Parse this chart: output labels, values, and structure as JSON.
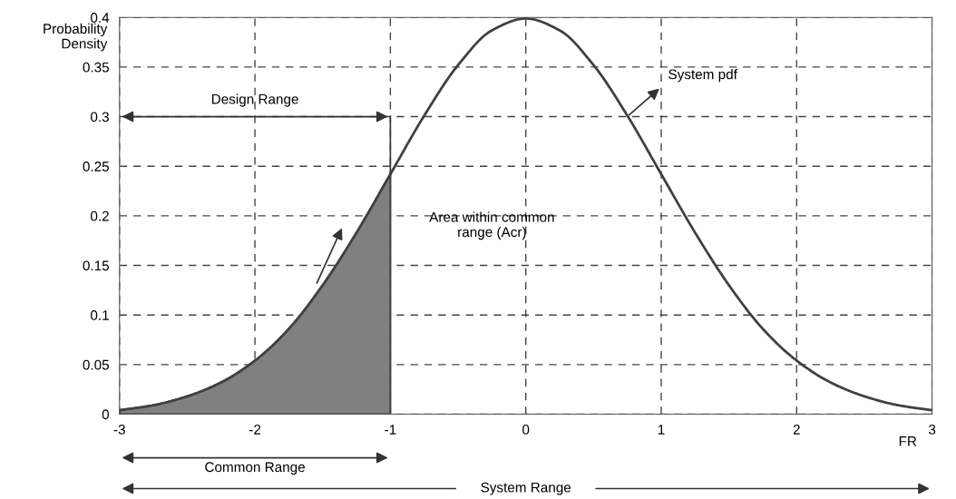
{
  "chart_data": {
    "type": "line",
    "ylabel": "Probability\nDensity",
    "xlabel": "FR",
    "x": [
      -3,
      -2.75,
      -2.5,
      -2.25,
      -2,
      -1.75,
      -1.5,
      -1.25,
      -1,
      -0.75,
      -0.5,
      -0.25,
      0,
      0.25,
      0.5,
      0.75,
      1,
      1.25,
      1.5,
      1.75,
      2,
      2.25,
      2.5,
      2.75,
      3
    ],
    "series": [
      {
        "color": "#404040",
        "values": [
          0.004,
          0.009,
          0.018,
          0.032,
          0.054,
          0.086,
          0.13,
          0.183,
          0.242,
          0.301,
          0.352,
          0.387,
          0.399,
          0.387,
          0.352,
          0.301,
          0.242,
          0.183,
          0.13,
          0.086,
          0.054,
          0.032,
          0.018,
          0.009,
          0.004
        ]
      },
      {
        "type": "area",
        "color": "#808080",
        "x": [
          -3,
          -2.75,
          -2.5,
          -2.25,
          -2,
          -1.75,
          -1.5,
          -1.25,
          -1
        ],
        "values": [
          0.004,
          0.009,
          0.018,
          0.032,
          0.054,
          0.086,
          0.13,
          0.183,
          0.242
        ]
      }
    ],
    "xlim": [
      -3,
      3
    ],
    "ylim": [
      0,
      0.4
    ],
    "xticks": [
      -3,
      -2,
      -1,
      0,
      1,
      2,
      3
    ],
    "yticks": [
      0,
      0.05,
      0.1,
      0.15,
      0.2,
      0.25,
      0.3,
      0.35,
      0.4
    ],
    "grid": true,
    "line_style": "solid",
    "annotations": [
      {
        "text": "System pdf",
        "x": 0.75,
        "y": 0.3
      },
      "Area within common\nrange (Acr)",
      "Design Range",
      "Common Range",
      "System Range"
    ]
  }
}
